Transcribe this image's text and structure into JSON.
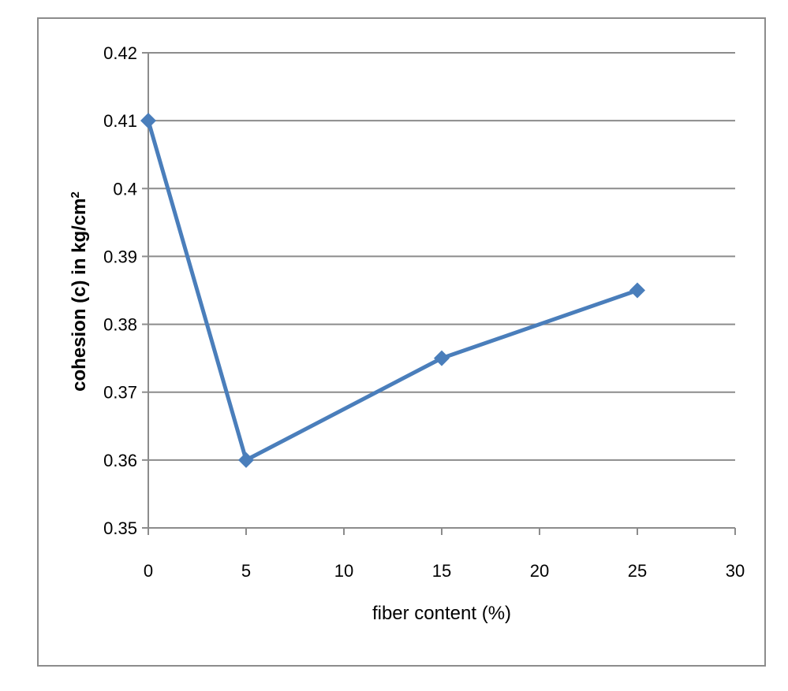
{
  "chart_data": {
    "type": "line",
    "title": "",
    "xlabel": "fiber content (%)",
    "ylabel": {
      "main": "cohesion (c) in kg/cm",
      "superscript": "2"
    },
    "xlim": [
      0,
      30
    ],
    "ylim": [
      0.35,
      0.42
    ],
    "x_ticks": [
      "0",
      "5",
      "10",
      "15",
      "20",
      "25",
      "30"
    ],
    "y_ticks": [
      "0.35",
      "0.36",
      "0.37",
      "0.38",
      "0.39",
      "0.4",
      "0.41",
      "0.42"
    ],
    "grid": true,
    "legend": "none",
    "series": [
      {
        "color": "#4a7ebb",
        "marker": "diamond",
        "x": [
          0,
          5,
          15,
          25
        ],
        "y": [
          0.41,
          0.36,
          0.375,
          0.385
        ]
      }
    ]
  }
}
